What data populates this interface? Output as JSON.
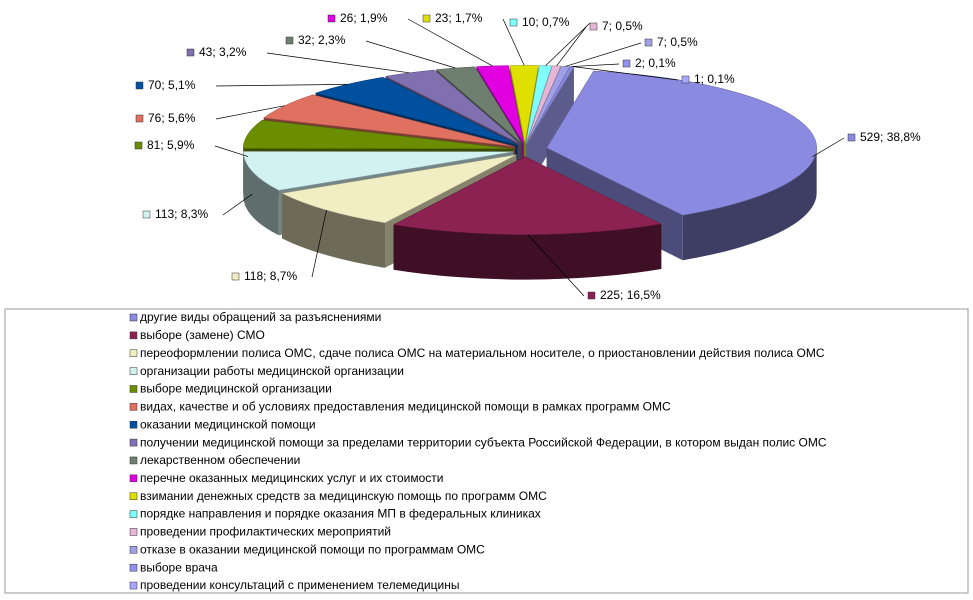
{
  "chart_data": {
    "type": "pie3d",
    "categories": [
      "другие виды обращений за разъяснениями",
      "выборе (замене) СМО",
      "переоформлении полиса ОМС, сдаче полиса ОМС на материальном носителе, о приостановлении действия полиса ОМС",
      "организации работы медицинской организации",
      "выборе медицинской  организации",
      "видах, качестве и об  условиях предоставления медицинской помощи в рамках программ ОМС",
      "оказании медицинской помощи",
      "получении медицинской помощи за пределами территории субъекта Российской Федерации, в котором выдан полис ОМС",
      "лекарственном обеспечении",
      "перечне оказанных медицинских услуг и их стоимости",
      "взимании денежных средств за медицинскую помощь по программ ОМС",
      "порядке направления и порядке оказания МП в федеральных клиниках",
      "проведении профилактических мероприятий",
      "отказе в оказании медицинской помощи по программам ОМС",
      "выборе врача",
      "проведении консультаций с применением телемедицины"
    ],
    "values": [
      529,
      225,
      118,
      113,
      81,
      76,
      70,
      43,
      32,
      26,
      23,
      10,
      7,
      7,
      2,
      1
    ],
    "value_labels": [
      "529; 38,8%",
      "225; 16,5%",
      "118; 8,7%",
      "113; 8,3%",
      "81; 5,9%",
      "76; 5,6%",
      "70; 5,1%",
      "43; 3,2%",
      "32; 2,3%",
      "26; 1,9%",
      "23; 1,7%",
      "10; 0,7%",
      "7; 0,5%",
      "7; 0,5%",
      "2; 0,1%",
      "1; 0,1%"
    ],
    "colors": [
      "#8a8ae0",
      "#8b2252",
      "#f2eec4",
      "#d2f2f2",
      "#6b8e00",
      "#e07060",
      "#0050a0",
      "#8070b0",
      "#6f7f6f",
      "#e000e0",
      "#e0e000",
      "#80ffff",
      "#e6b6d6",
      "#a0a0e6",
      "#9090f0",
      "#a8a8ff"
    ],
    "legend": "bottom"
  }
}
